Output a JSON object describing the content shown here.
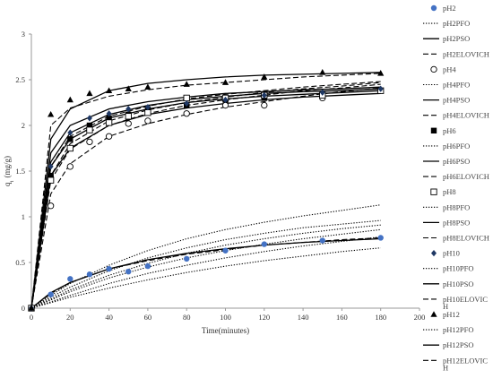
{
  "chart_data": {
    "type": "scatter",
    "title": "",
    "xlabel": "Time(minutes)",
    "ylabel": "qt (mg/g)",
    "xlim": [
      0,
      200
    ],
    "ylim": [
      0,
      3
    ],
    "xticks": [
      0,
      20,
      40,
      60,
      80,
      100,
      120,
      140,
      160,
      180,
      200
    ],
    "yticks": [
      0,
      0.5,
      1,
      1.5,
      2,
      2.5,
      3
    ],
    "ytick_labels": [
      "0",
      "0.5",
      "1",
      "1.5",
      "2",
      "2.5",
      "3"
    ],
    "grid": false,
    "legend_placement": "right",
    "legend": [
      {
        "label": "pH2",
        "kind": "marker",
        "marker": "circle-filled",
        "color": "#4472c4"
      },
      {
        "label": "pH2PFO",
        "kind": "line",
        "style": "dotted"
      },
      {
        "label": "pH2PSO",
        "kind": "line",
        "style": "solid"
      },
      {
        "label": "pH2ELOVICH",
        "kind": "line",
        "style": "dashed"
      },
      {
        "label": "pH4",
        "kind": "marker",
        "marker": "circle-open",
        "color": "#000000"
      },
      {
        "label": "pH4PFO",
        "kind": "line",
        "style": "dotted"
      },
      {
        "label": "pH4PSO",
        "kind": "line",
        "style": "solid"
      },
      {
        "label": "pH4ELOVICH",
        "kind": "line",
        "style": "dashed"
      },
      {
        "label": "pH6",
        "kind": "marker",
        "marker": "square-filled",
        "color": "#000000"
      },
      {
        "label": "pH6PFO",
        "kind": "line",
        "style": "dotted"
      },
      {
        "label": "pH6PSO",
        "kind": "line",
        "style": "solid"
      },
      {
        "label": "pH6ELOVICH",
        "kind": "line",
        "style": "dashed"
      },
      {
        "label": "pH8",
        "kind": "marker",
        "marker": "square-open",
        "color": "#000000"
      },
      {
        "label": "pH8PFO",
        "kind": "line",
        "style": "dotted"
      },
      {
        "label": "pH8PSO",
        "kind": "line",
        "style": "solid"
      },
      {
        "label": "pH8ELOVICH",
        "kind": "line",
        "style": "dashed"
      },
      {
        "label": "pH10",
        "kind": "marker",
        "marker": "diamond-filled",
        "color": "#1f3864"
      },
      {
        "label": "pH10PFO",
        "kind": "line",
        "style": "dotted"
      },
      {
        "label": "pH10PSO",
        "kind": "line",
        "style": "solid"
      },
      {
        "label": "pH10ELOVICH",
        "kind": "line",
        "style": "dashed"
      },
      {
        "label": "pH12",
        "kind": "marker",
        "marker": "triangle-filled",
        "color": "#000000"
      },
      {
        "label": "pH12PFO",
        "kind": "line",
        "style": "dotted"
      },
      {
        "label": "pH12PSO",
        "kind": "line",
        "style": "solid"
      },
      {
        "label": "pH12ELOVICH",
        "kind": "line",
        "style": "dashed"
      }
    ],
    "series": [
      {
        "name": "pH2",
        "kind": "scatter",
        "marker": "circle-filled",
        "color": "#4472c4",
        "x": [
          0,
          10,
          20,
          30,
          40,
          50,
          60,
          80,
          100,
          120,
          150,
          180
        ],
        "y": [
          0,
          0.15,
          0.32,
          0.37,
          0.43,
          0.4,
          0.46,
          0.54,
          0.63,
          0.7,
          0.74,
          0.77
        ]
      },
      {
        "name": "pH4",
        "kind": "scatter",
        "marker": "circle-open",
        "color": "#000000",
        "x": [
          0,
          10,
          20,
          30,
          40,
          50,
          60,
          80,
          100,
          120,
          150
        ],
        "y": [
          0,
          1.12,
          1.55,
          1.82,
          1.88,
          2.02,
          2.05,
          2.13,
          2.22,
          2.22,
          2.3
        ]
      },
      {
        "name": "pH6",
        "kind": "scatter",
        "marker": "square-filled",
        "color": "#000000",
        "x": [
          0,
          10,
          20,
          30,
          40,
          50,
          60,
          80,
          100,
          120,
          150,
          180
        ],
        "y": [
          0,
          1.45,
          1.85,
          2.0,
          2.08,
          2.12,
          2.18,
          2.22,
          2.28,
          2.3,
          2.33,
          2.38
        ]
      },
      {
        "name": "pH8",
        "kind": "scatter",
        "marker": "square-open",
        "color": "#000000",
        "x": [
          0,
          10,
          20,
          30,
          40,
          50,
          60,
          80,
          100,
          120,
          150,
          180
        ],
        "y": [
          0,
          1.4,
          1.75,
          1.95,
          2.03,
          2.1,
          2.14,
          2.3,
          2.3,
          2.33,
          2.33,
          2.38
        ]
      },
      {
        "name": "pH10",
        "kind": "scatter",
        "marker": "diamond-filled",
        "color": "#1f3864",
        "x": [
          0,
          10,
          20,
          30,
          40,
          50,
          60,
          80,
          100,
          120,
          150,
          180
        ],
        "y": [
          0,
          1.55,
          1.92,
          2.08,
          2.13,
          2.18,
          2.2,
          2.24,
          2.28,
          2.33,
          2.36,
          2.4
        ]
      },
      {
        "name": "pH12",
        "kind": "scatter",
        "marker": "triangle-filled",
        "color": "#000000",
        "x": [
          0,
          10,
          20,
          30,
          40,
          50,
          60,
          80,
          100,
          120,
          150,
          180
        ],
        "y": [
          0,
          2.12,
          2.28,
          2.35,
          2.38,
          2.4,
          2.42,
          2.45,
          2.47,
          2.53,
          2.58,
          2.57
        ]
      },
      {
        "name": "pH2PFO",
        "kind": "line",
        "style": "dotted",
        "x": [
          0,
          10,
          20,
          40,
          60,
          80,
          100,
          120,
          140,
          160,
          180
        ],
        "y": [
          0,
          0.06,
          0.12,
          0.22,
          0.31,
          0.39,
          0.46,
          0.52,
          0.57,
          0.62,
          0.66
        ]
      },
      {
        "name": "pH2PSO",
        "kind": "line",
        "style": "solid",
        "x": [
          0,
          10,
          20,
          40,
          60,
          80,
          100,
          120,
          140,
          160,
          180
        ],
        "y": [
          0,
          0.17,
          0.28,
          0.43,
          0.53,
          0.6,
          0.65,
          0.69,
          0.72,
          0.74,
          0.76
        ]
      },
      {
        "name": "pH2ELOVICH",
        "kind": "line",
        "style": "dashed",
        "x": [
          0,
          10,
          20,
          40,
          60,
          80,
          100,
          120,
          140,
          160,
          180
        ],
        "y": [
          0,
          0.16,
          0.28,
          0.43,
          0.52,
          0.59,
          0.64,
          0.69,
          0.72,
          0.75,
          0.77
        ]
      },
      {
        "name": "pH4PFO",
        "kind": "line",
        "style": "dotted",
        "x": [
          0,
          10,
          20,
          40,
          60,
          80,
          100,
          120,
          140,
          160,
          180
        ],
        "y": [
          0,
          0.14,
          0.27,
          0.47,
          0.63,
          0.76,
          0.86,
          0.94,
          1.01,
          1.07,
          1.13
        ]
      },
      {
        "name": "pH4PSO",
        "kind": "line",
        "style": "solid",
        "x": [
          0,
          10,
          20,
          40,
          60,
          80,
          100,
          120,
          140,
          160,
          180
        ],
        "y": [
          0,
          1.45,
          1.75,
          2.0,
          2.12,
          2.19,
          2.24,
          2.28,
          2.31,
          2.33,
          2.35
        ]
      },
      {
        "name": "pH4ELOVICH",
        "kind": "line",
        "style": "dashed",
        "x": [
          0,
          10,
          20,
          40,
          60,
          80,
          100,
          120,
          140,
          160,
          180
        ],
        "y": [
          0,
          1.25,
          1.58,
          1.88,
          2.02,
          2.12,
          2.2,
          2.26,
          2.32,
          2.37,
          2.41
        ]
      },
      {
        "name": "pH6PFO",
        "kind": "line",
        "style": "dotted",
        "x": [
          0,
          10,
          20,
          40,
          60,
          80,
          100,
          120,
          140,
          160,
          180
        ],
        "y": [
          0,
          0.12,
          0.23,
          0.41,
          0.55,
          0.66,
          0.75,
          0.82,
          0.88,
          0.92,
          0.96
        ]
      },
      {
        "name": "pH6PSO",
        "kind": "line",
        "style": "solid",
        "x": [
          0,
          10,
          20,
          40,
          60,
          80,
          100,
          120,
          140,
          160,
          180
        ],
        "y": [
          0,
          1.55,
          1.85,
          2.08,
          2.18,
          2.25,
          2.29,
          2.32,
          2.34,
          2.36,
          2.38
        ]
      },
      {
        "name": "pH6ELOVICH",
        "kind": "line",
        "style": "dashed",
        "x": [
          0,
          10,
          20,
          40,
          60,
          80,
          100,
          120,
          140,
          160,
          180
        ],
        "y": [
          0,
          1.4,
          1.74,
          2.0,
          2.13,
          2.22,
          2.28,
          2.33,
          2.38,
          2.41,
          2.45
        ]
      },
      {
        "name": "pH8PFO",
        "kind": "line",
        "style": "dotted",
        "x": [
          0,
          10,
          20,
          40,
          60,
          80,
          100,
          120,
          140,
          160,
          180
        ],
        "y": [
          0,
          0.1,
          0.2,
          0.36,
          0.49,
          0.6,
          0.69,
          0.76,
          0.82,
          0.87,
          0.91
        ]
      },
      {
        "name": "pH8PSO",
        "kind": "line",
        "style": "solid",
        "x": [
          0,
          10,
          20,
          40,
          60,
          80,
          100,
          120,
          140,
          160,
          180
        ],
        "y": [
          0,
          1.6,
          1.92,
          2.12,
          2.22,
          2.28,
          2.32,
          2.35,
          2.37,
          2.38,
          2.4
        ]
      },
      {
        "name": "pH8ELOVICH",
        "kind": "line",
        "style": "dashed",
        "x": [
          0,
          10,
          20,
          40,
          60,
          80,
          100,
          120,
          140,
          160,
          180
        ],
        "y": [
          0,
          1.45,
          1.8,
          2.05,
          2.17,
          2.25,
          2.31,
          2.36,
          2.4,
          2.43,
          2.47
        ]
      },
      {
        "name": "pH10PFO",
        "kind": "line",
        "style": "dotted",
        "x": [
          0,
          10,
          20,
          40,
          60,
          80,
          100,
          120,
          140,
          160,
          180
        ],
        "y": [
          0,
          0.09,
          0.18,
          0.33,
          0.45,
          0.55,
          0.63,
          0.7,
          0.76,
          0.81,
          0.86
        ]
      },
      {
        "name": "pH10PSO",
        "kind": "line",
        "style": "solid",
        "x": [
          0,
          10,
          20,
          40,
          60,
          80,
          100,
          120,
          140,
          160,
          180
        ],
        "y": [
          0,
          1.7,
          2.0,
          2.18,
          2.26,
          2.31,
          2.35,
          2.37,
          2.39,
          2.4,
          2.42
        ]
      },
      {
        "name": "pH10ELOVICH",
        "kind": "line",
        "style": "dashed",
        "x": [
          0,
          10,
          20,
          40,
          60,
          80,
          100,
          120,
          140,
          160,
          180
        ],
        "y": [
          0,
          1.55,
          1.88,
          2.1,
          2.21,
          2.29,
          2.34,
          2.38,
          2.42,
          2.45,
          2.48
        ]
      },
      {
        "name": "pH12PFO",
        "kind": "line",
        "style": "dotted",
        "x": [
          0,
          10,
          20,
          40,
          60,
          80,
          100,
          120,
          140,
          160,
          180
        ],
        "y": [
          0,
          0.07,
          0.14,
          0.27,
          0.38,
          0.47,
          0.55,
          0.62,
          0.68,
          0.73,
          0.78
        ]
      },
      {
        "name": "pH12PSO",
        "kind": "line",
        "style": "solid",
        "x": [
          0,
          10,
          20,
          40,
          60,
          80,
          100,
          120,
          140,
          160,
          180
        ],
        "y": [
          0,
          1.85,
          2.18,
          2.38,
          2.46,
          2.5,
          2.53,
          2.55,
          2.56,
          2.57,
          2.58
        ]
      },
      {
        "name": "pH12ELOVICH",
        "kind": "line",
        "style": "dashed",
        "x": [
          0,
          10,
          20,
          40,
          60,
          80,
          100,
          120,
          140,
          160,
          180
        ],
        "y": [
          0,
          2.0,
          2.19,
          2.32,
          2.39,
          2.44,
          2.47,
          2.5,
          2.53,
          2.55,
          2.57
        ]
      }
    ]
  }
}
